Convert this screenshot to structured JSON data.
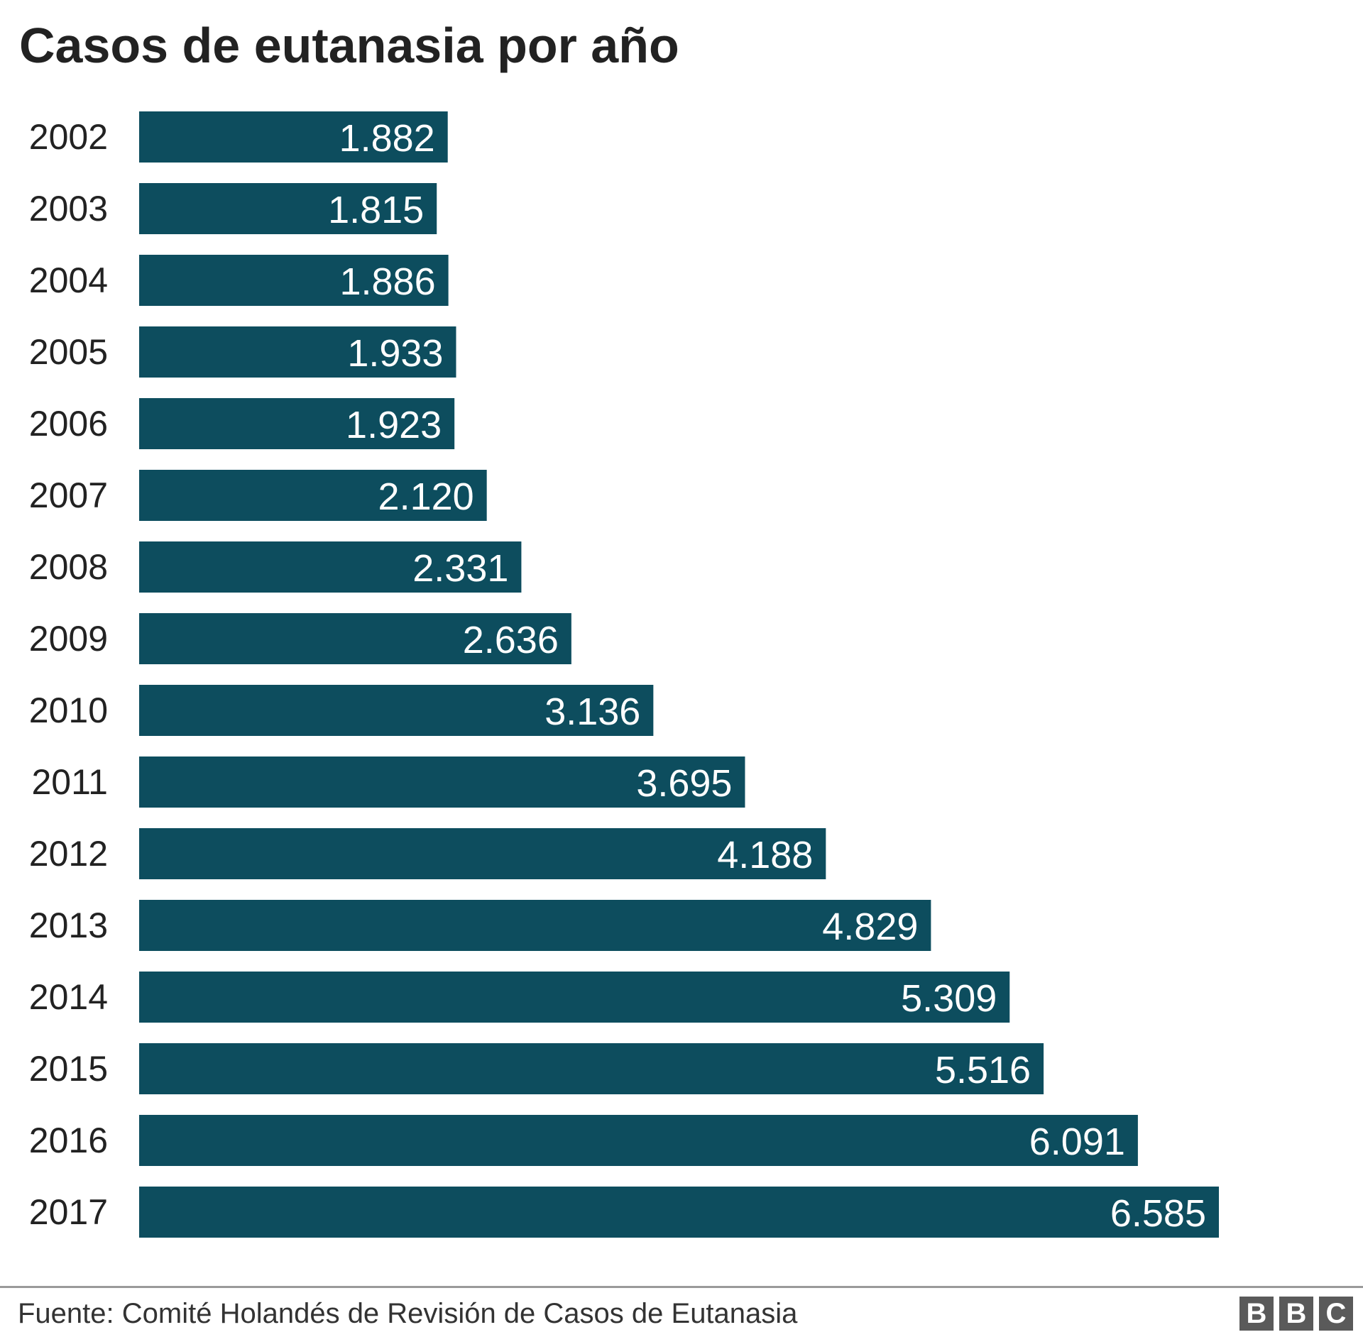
{
  "chart_data": {
    "type": "bar",
    "orientation": "horizontal",
    "title": "Casos de eutanasia por año",
    "categories": [
      "2002",
      "2003",
      "2004",
      "2005",
      "2006",
      "2007",
      "2008",
      "2009",
      "2010",
      "2011",
      "2012",
      "2013",
      "2014",
      "2015",
      "2016",
      "2017"
    ],
    "values": [
      1882,
      1815,
      1886,
      1933,
      1923,
      2120,
      2331,
      2636,
      3136,
      3695,
      4188,
      4829,
      5309,
      5516,
      6091,
      6585
    ],
    "value_labels": [
      "1.882",
      "1.815",
      "1.886",
      "1.933",
      "1.923",
      "2.120",
      "2.331",
      "2.636",
      "3.136",
      "3.695",
      "4.188",
      "4.829",
      "5.309",
      "5.516",
      "6.091",
      "6.585"
    ],
    "xlim": [
      0,
      6585
    ],
    "grid": false,
    "legend": "none",
    "bar_color": "#0d4d5e",
    "source": "Fuente: Comité Holandés de Revisión de Casos de Eutanasia"
  },
  "footer": {
    "logo_letters": [
      "B",
      "B",
      "C"
    ],
    "logo_color": "#5a5a5a"
  }
}
